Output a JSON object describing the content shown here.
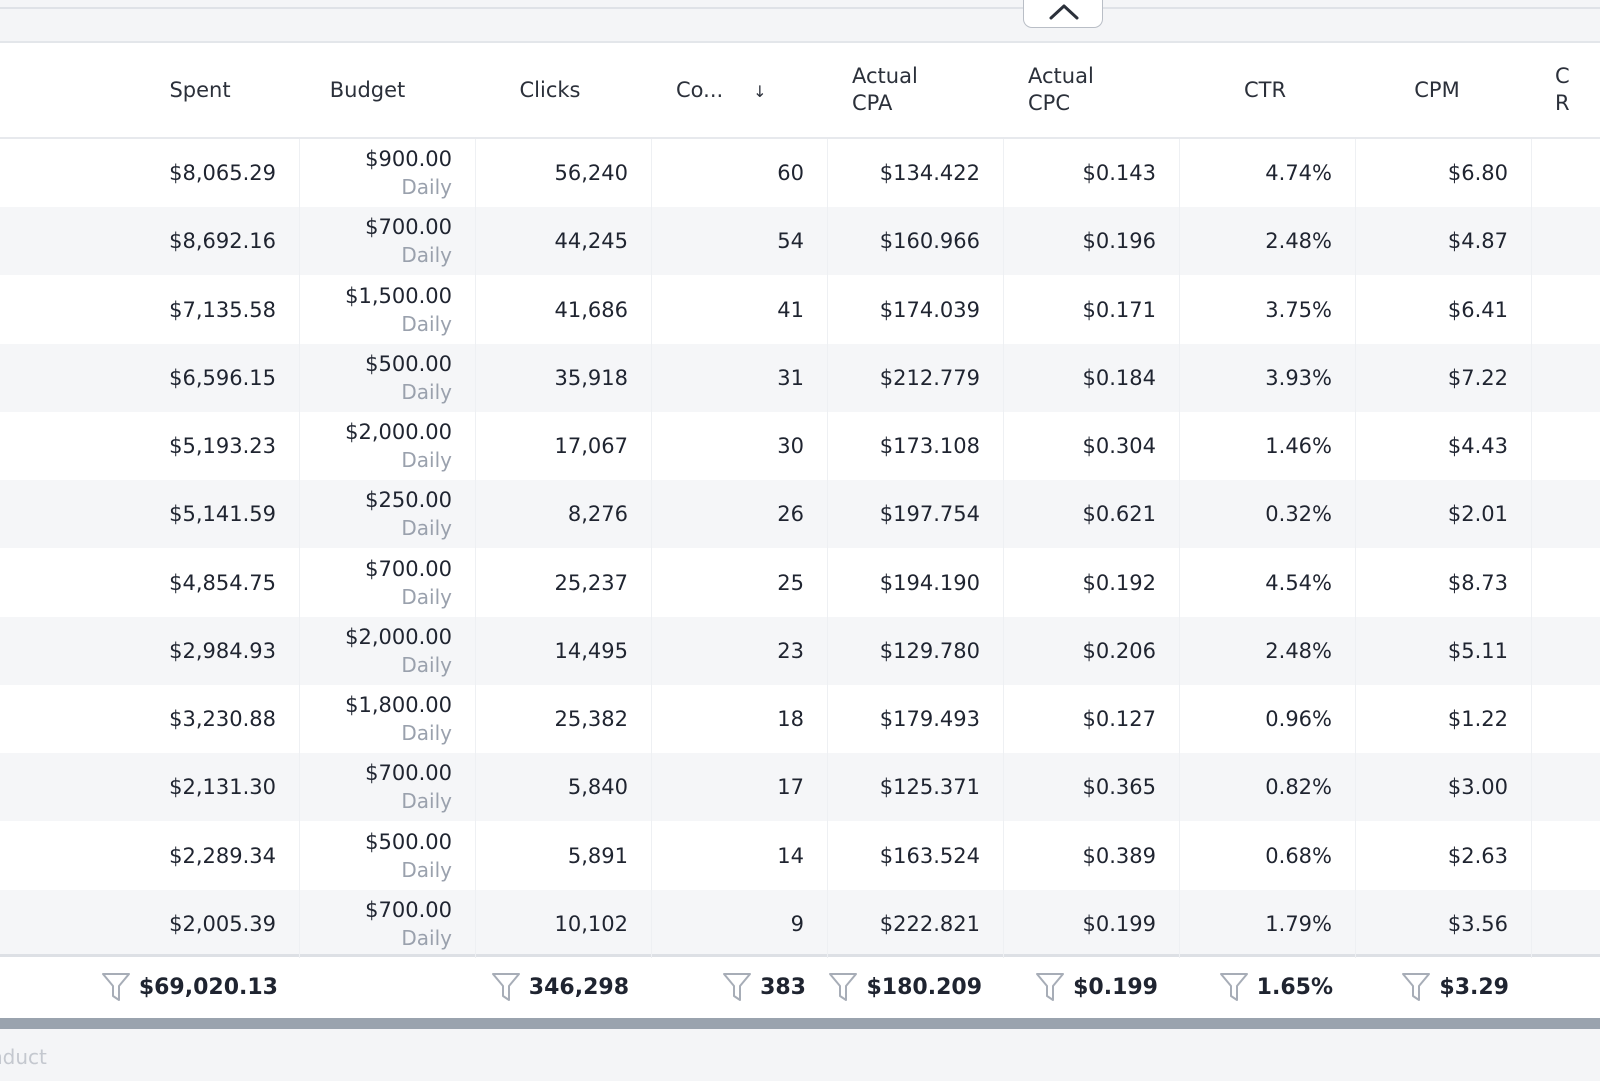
{
  "columns": {
    "spent": "Spent",
    "budget": "Budget",
    "clicks": "Clicks",
    "conversions": "Co...",
    "conversions_sort": "↓",
    "cpa_1": "Actual",
    "cpa_2": "CPA",
    "cpc_1": "Actual",
    "cpc_2": "CPC",
    "ctr": "CTR",
    "cpm": "CPM",
    "partial_1": "C",
    "partial_2": "R"
  },
  "rows": [
    {
      "spent": "$8,065.29",
      "budget": "$900.00",
      "budget_type": "Daily",
      "clicks": "56,240",
      "conversions": "60",
      "cpa": "$134.422",
      "cpc": "$0.143",
      "ctr": "4.74%",
      "cpm": "$6.80"
    },
    {
      "spent": "$8,692.16",
      "budget": "$700.00",
      "budget_type": "Daily",
      "clicks": "44,245",
      "conversions": "54",
      "cpa": "$160.966",
      "cpc": "$0.196",
      "ctr": "2.48%",
      "cpm": "$4.87"
    },
    {
      "spent": "$7,135.58",
      "budget": "$1,500.00",
      "budget_type": "Daily",
      "clicks": "41,686",
      "conversions": "41",
      "cpa": "$174.039",
      "cpc": "$0.171",
      "ctr": "3.75%",
      "cpm": "$6.41"
    },
    {
      "spent": "$6,596.15",
      "budget": "$500.00",
      "budget_type": "Daily",
      "clicks": "35,918",
      "conversions": "31",
      "cpa": "$212.779",
      "cpc": "$0.184",
      "ctr": "3.93%",
      "cpm": "$7.22"
    },
    {
      "spent": "$5,193.23",
      "budget": "$2,000.00",
      "budget_type": "Daily",
      "clicks": "17,067",
      "conversions": "30",
      "cpa": "$173.108",
      "cpc": "$0.304",
      "ctr": "1.46%",
      "cpm": "$4.43"
    },
    {
      "spent": "$5,141.59",
      "budget": "$250.00",
      "budget_type": "Daily",
      "clicks": "8,276",
      "conversions": "26",
      "cpa": "$197.754",
      "cpc": "$0.621",
      "ctr": "0.32%",
      "cpm": "$2.01"
    },
    {
      "spent": "$4,854.75",
      "budget": "$700.00",
      "budget_type": "Daily",
      "clicks": "25,237",
      "conversions": "25",
      "cpa": "$194.190",
      "cpc": "$0.192",
      "ctr": "4.54%",
      "cpm": "$8.73"
    },
    {
      "spent": "$2,984.93",
      "budget": "$2,000.00",
      "budget_type": "Daily",
      "clicks": "14,495",
      "conversions": "23",
      "cpa": "$129.780",
      "cpc": "$0.206",
      "ctr": "2.48%",
      "cpm": "$5.11"
    },
    {
      "spent": "$3,230.88",
      "budget": "$1,800.00",
      "budget_type": "Daily",
      "clicks": "25,382",
      "conversions": "18",
      "cpa": "$179.493",
      "cpc": "$0.127",
      "ctr": "0.96%",
      "cpm": "$1.22"
    },
    {
      "spent": "$2,131.30",
      "budget": "$700.00",
      "budget_type": "Daily",
      "clicks": "5,840",
      "conversions": "17",
      "cpa": "$125.371",
      "cpc": "$0.365",
      "ctr": "0.82%",
      "cpm": "$3.00"
    },
    {
      "spent": "$2,289.34",
      "budget": "$500.00",
      "budget_type": "Daily",
      "clicks": "5,891",
      "conversions": "14",
      "cpa": "$163.524",
      "cpc": "$0.389",
      "ctr": "0.68%",
      "cpm": "$2.63"
    },
    {
      "spent": "$2,005.39",
      "budget": "$700.00",
      "budget_type": "Daily",
      "clicks": "10,102",
      "conversions": "9",
      "cpa": "$222.821",
      "cpc": "$0.199",
      "ctr": "1.79%",
      "cpm": "$3.56"
    }
  ],
  "totals": {
    "spent": "$69,020.13",
    "clicks": "346,298",
    "conversions": "383",
    "cpa": "$180.209",
    "cpc": "$0.199",
    "ctr": "1.65%",
    "cpm": "$3.29"
  },
  "bottom_partial_text": "nduct",
  "icons": {
    "collapse": "chevron-up-icon",
    "filter": "filter-icon",
    "sort": "arrow-down-icon"
  }
}
